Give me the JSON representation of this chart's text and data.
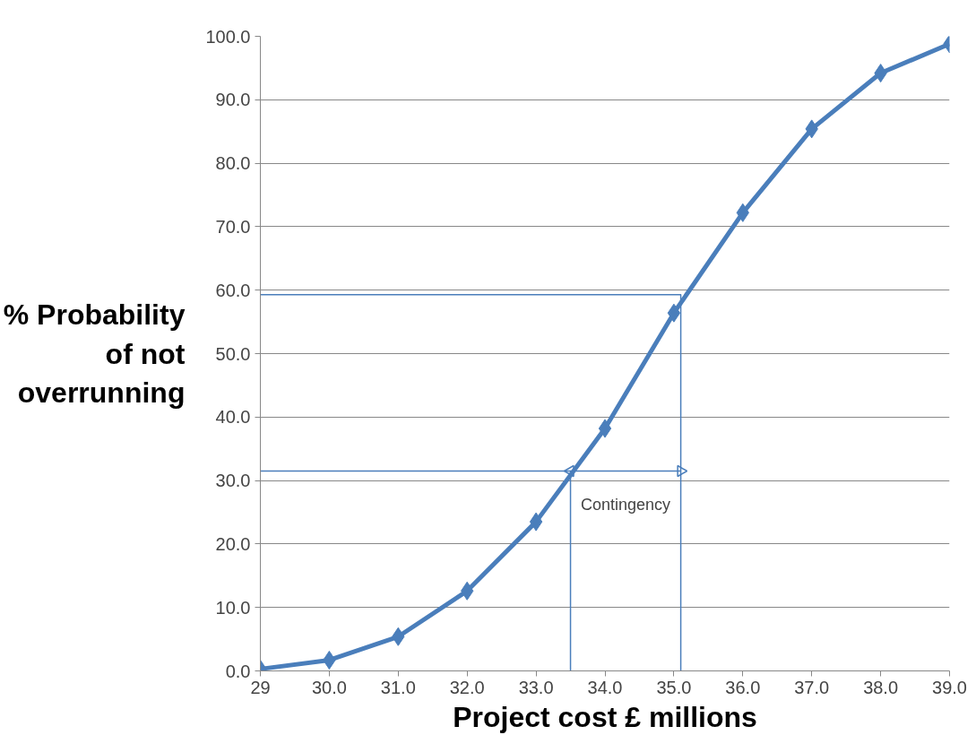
{
  "chart_data": {
    "type": "line",
    "xlabel": "Project cost £ millions",
    "ylabel": "% Probability\nof not\noverrunning",
    "x": [
      29,
      30,
      31,
      32,
      33,
      34,
      35,
      36,
      37,
      38,
      39
    ],
    "series": [
      {
        "color": "#4a7ebb",
        "values": [
          0.3,
          1.7,
          5.4,
          12.6,
          23.5,
          38.2,
          56.4,
          72.2,
          85.4,
          94.2,
          98.8
        ]
      },
      {
        "type": "line",
        "marker": "none",
        "color": "#4a7ebb",
        "x": [
          29,
          35.1,
          35.1
        ],
        "values": [
          59.3,
          59.3,
          0
        ]
      },
      {
        "type": "line",
        "marker": "none",
        "color": "#4a7ebb",
        "x": [
          29,
          33.5,
          33.5
        ],
        "values": [
          31.5,
          31.5,
          0
        ]
      },
      {
        "type": "line",
        "marker": "triangle",
        "color": "#4a7ebb",
        "x": [
          33.5,
          35.1
        ],
        "values": [
          31.5,
          31.5
        ]
      }
    ],
    "annotations": [
      "Contingency"
    ],
    "xlim": [
      29,
      39
    ],
    "ylim": [
      0,
      100
    ],
    "xticks": [
      29,
      {
        "value": 30,
        "label": "30.0"
      },
      {
        "value": 31,
        "label": "31.0"
      },
      {
        "value": 32,
        "label": "32.0"
      },
      {
        "value": 33,
        "label": "33.0"
      },
      {
        "value": 34,
        "label": "34.0"
      },
      {
        "value": 35,
        "label": "35.0"
      },
      {
        "value": 36,
        "label": "36.0"
      },
      {
        "value": 37,
        "label": "37.0"
      },
      {
        "value": 38,
        "label": "38.0"
      },
      {
        "value": 39,
        "label": "39.0"
      }
    ],
    "yticks": [
      {
        "value": 0,
        "label": "0.0"
      },
      {
        "value": 10,
        "label": "10.0"
      },
      {
        "value": 20,
        "label": "20.0"
      },
      {
        "value": 30,
        "label": "30.0"
      },
      {
        "value": 40,
        "label": "40.0"
      },
      {
        "value": 50,
        "label": "50.0"
      },
      {
        "value": 60,
        "label": "60.0"
      },
      {
        "value": 70,
        "label": "70.0"
      },
      {
        "value": 80,
        "label": "80.0"
      },
      {
        "value": 90,
        "label": "90.0"
      },
      {
        "value": 100,
        "label": "100.0"
      }
    ],
    "grid": "y",
    "marker": "diamond",
    "line_style": "solid"
  }
}
